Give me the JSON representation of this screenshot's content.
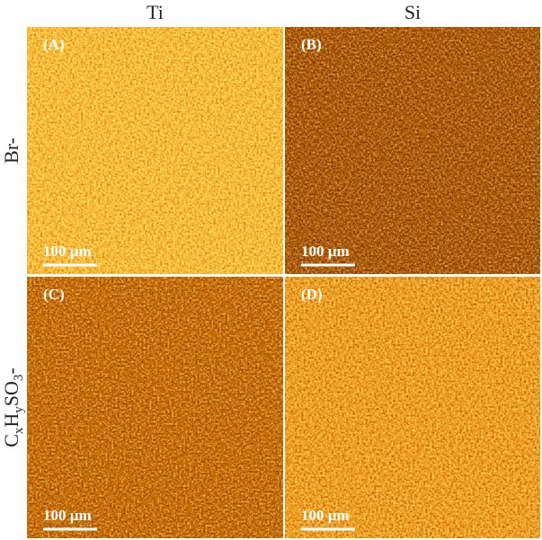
{
  "columns": [
    "Ti",
    "Si"
  ],
  "rows": [
    {
      "label_parts": [
        "Br-"
      ]
    },
    {
      "label_parts": [
        "C",
        "x",
        "H",
        "y",
        "SO",
        "3",
        "-"
      ]
    }
  ],
  "panels": [
    {
      "label": "(A)",
      "scale": "100 µm"
    },
    {
      "label": "(B)",
      "scale": "100 µm"
    },
    {
      "label": "(C)",
      "scale": "100 µm"
    },
    {
      "label": "(D)",
      "scale": "100 µm"
    }
  ]
}
